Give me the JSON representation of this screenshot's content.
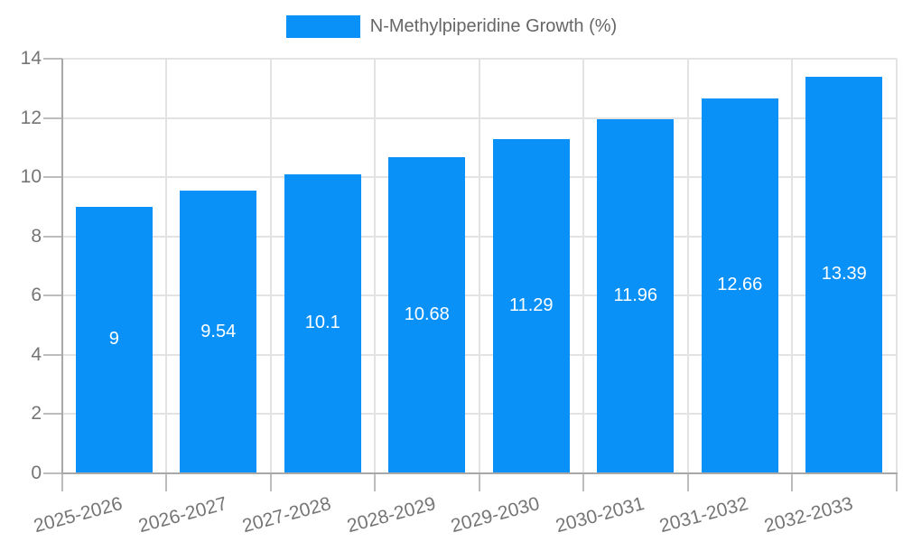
{
  "chart_data": {
    "type": "bar",
    "title": "N-Methylpiperidine Growth (%)",
    "legend": {
      "label": "N-Methylpiperidine Growth (%)",
      "position": "top",
      "swatch_color": "#0a91f7"
    },
    "categories": [
      "2025-2026",
      "2026-2027",
      "2027-2028",
      "2028-2029",
      "2029-2030",
      "2030-2031",
      "2031-2032",
      "2032-2033"
    ],
    "series": [
      {
        "name": "N-Methylpiperidine Growth (%)",
        "values": [
          9,
          9.54,
          10.1,
          10.68,
          11.29,
          11.96,
          12.66,
          13.39
        ]
      }
    ],
    "data_labels": [
      "9",
      "9.54",
      "10.1",
      "10.68",
      "11.29",
      "11.96",
      "12.66",
      "13.39"
    ],
    "xlabel": "",
    "ylabel": "",
    "ylim": [
      0,
      14
    ],
    "yticks": [
      0,
      2,
      4,
      6,
      8,
      10,
      12,
      14
    ],
    "grid": true,
    "colors": {
      "bar": "#0a91f7",
      "data_label": "#ffffff",
      "gridline": "#e3e3e3",
      "axis_line": "#a8a8a8",
      "tick_mark": "#bdbdbd",
      "tick_label": "#757575",
      "legend_label": "#666666"
    }
  }
}
